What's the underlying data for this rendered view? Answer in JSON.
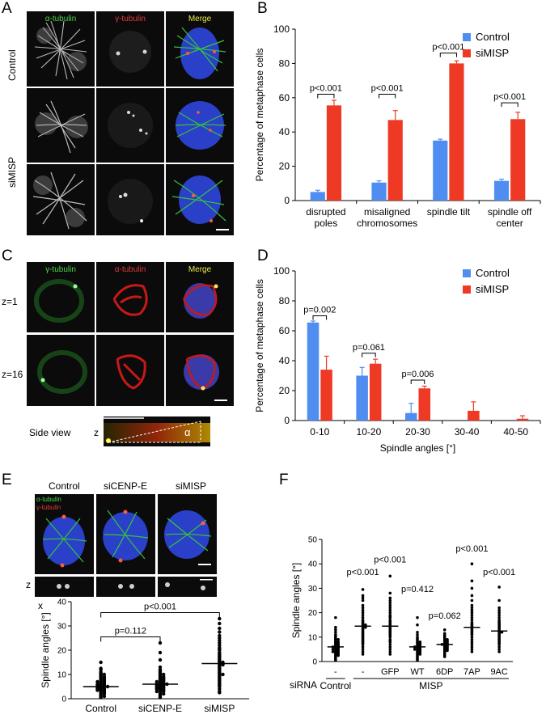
{
  "panels": {
    "A": "A",
    "B": "B",
    "C": "C",
    "D": "D",
    "E": "E",
    "F": "F"
  },
  "panelA": {
    "columns": [
      "α-tubulin",
      "γ-tubulin",
      "Merge"
    ],
    "column_colors": [
      "#4cd44c",
      "#e23a3a",
      "#e8e84a"
    ],
    "rows": {
      "control": "Control",
      "simisp": "siMISP"
    }
  },
  "panelC": {
    "columns": [
      "γ-tubulin",
      "α-tubulin",
      "Merge"
    ],
    "column_colors": [
      "#4cd44c",
      "#e23a3a",
      "#e8e84a"
    ],
    "rows": [
      "z=1",
      "z=16"
    ],
    "side_view": "Side view",
    "z_label": "z",
    "angle_symbol": "α"
  },
  "panelE": {
    "columns": [
      "Control",
      "siCENP-E",
      "siMISP"
    ],
    "inset_labels": [
      "α-tubulin",
      "γ-tubulin"
    ],
    "z_label": "z",
    "x_label": "x"
  },
  "chart_data": [
    {
      "id": "B",
      "type": "bar",
      "ylabel": "Percentage of metaphase cells",
      "ylim": [
        0,
        100
      ],
      "yticks": [
        0,
        20,
        40,
        60,
        80,
        100
      ],
      "categories": [
        [
          "disrupted",
          "poles"
        ],
        [
          "misaligned",
          "chromosomes"
        ],
        [
          "spindle tilt"
        ],
        [
          "spindle off",
          "center"
        ]
      ],
      "series": [
        {
          "name": "Control",
          "color": "#4f8ef0",
          "values": [
            5,
            10.5,
            35,
            11.5
          ],
          "errors": [
            1,
            1,
            0.8,
            1
          ]
        },
        {
          "name": "siMISP",
          "color": "#ee3a24",
          "values": [
            55.5,
            47,
            80,
            47.5
          ],
          "errors": [
            3,
            5.5,
            1.5,
            4
          ]
        }
      ],
      "annotations": [
        {
          "text": "p<0.001",
          "category": 0,
          "y": 62
        },
        {
          "text": "p<0.001",
          "category": 1,
          "y": 62
        },
        {
          "text": "p<0.001",
          "category": 2,
          "y": 86
        },
        {
          "text": "p<0.001",
          "category": 3,
          "y": 57
        }
      ],
      "legend": "top-right"
    },
    {
      "id": "D",
      "type": "bar",
      "xlabel": "Spindle angles [°]",
      "ylabel": "Percentage of metaphase cells",
      "ylim": [
        0,
        100
      ],
      "yticks": [
        0,
        20,
        40,
        60,
        80,
        100
      ],
      "categories": [
        [
          "0-10"
        ],
        [
          "10-20"
        ],
        [
          "20-30"
        ],
        [
          "30-40"
        ],
        [
          "40-50"
        ]
      ],
      "series": [
        {
          "name": "Control",
          "color": "#4f8ef0",
          "values": [
            65.5,
            30,
            5,
            0,
            0
          ],
          "errors": [
            1,
            5.5,
            6.5,
            0,
            0
          ]
        },
        {
          "name": "siMISP",
          "color": "#ee3a24",
          "values": [
            34,
            38,
            21.5,
            6.5,
            1.2
          ],
          "errors": [
            9,
            3,
            1.5,
            6,
            2
          ]
        }
      ],
      "annotations": [
        {
          "text": "p=0.002",
          "category": 0,
          "y": 70
        },
        {
          "text": "p=0.061",
          "category": 1,
          "y": 45
        },
        {
          "text": "p=0.006",
          "category": 2,
          "y": 27
        }
      ],
      "legend": "top-right"
    },
    {
      "id": "E",
      "type": "scatter",
      "ylabel": "Spindle angles [°]",
      "ylim": [
        0,
        40
      ],
      "yticks": [
        0,
        10,
        20,
        30,
        40
      ],
      "categories": [
        "Control",
        "siCENP-E",
        "siMISP"
      ],
      "groups": [
        {
          "name": "Control",
          "median": 5,
          "values": [
            15,
            12.5,
            12,
            11,
            10.5,
            10,
            10,
            9.5,
            9,
            9,
            8.5,
            8.5,
            8,
            8,
            7.5,
            7.5,
            7,
            7,
            7,
            6.5,
            6.5,
            6,
            6,
            6,
            5.5,
            5.5,
            5.5,
            5,
            5,
            5,
            5,
            4.5,
            4.5,
            4.5,
            4,
            4,
            4,
            3.5,
            3.5,
            3.5,
            3,
            3,
            2.5,
            2.5,
            2,
            2,
            1.5,
            1,
            1,
            0.5
          ]
        },
        {
          "name": "siCENP-E",
          "median": 6,
          "values": [
            23,
            19,
            16,
            13,
            12,
            11.5,
            11,
            10.5,
            10,
            10,
            9.5,
            9,
            9,
            8.5,
            8.5,
            8,
            8,
            7.5,
            7.5,
            7,
            7,
            7,
            6.5,
            6.5,
            6,
            6,
            6,
            6,
            5.5,
            5.5,
            5.5,
            5,
            5,
            5,
            4.5,
            4.5,
            4.5,
            4,
            4,
            4,
            3.5,
            3.5,
            3,
            3,
            3,
            2.5,
            2,
            2,
            1.5,
            1,
            0.5
          ]
        },
        {
          "name": "siMISP",
          "median": 14.5,
          "values": [
            33,
            31,
            29,
            27.5,
            26,
            25,
            24,
            23,
            22,
            21,
            20.5,
            20,
            19,
            18.5,
            18,
            17.5,
            17,
            16.5,
            16,
            15.5,
            15,
            15,
            14.5,
            14.5,
            14,
            14,
            13.5,
            13,
            12.5,
            12,
            11.5,
            11,
            10.5,
            10,
            10,
            9.5,
            9,
            8.5,
            8,
            7.5,
            7,
            6.5,
            6,
            5.5,
            5,
            4,
            3,
            2.5
          ]
        }
      ],
      "annotations": [
        {
          "text": "p=0.112",
          "from": 0,
          "to": 1,
          "y": 25.5
        },
        {
          "text": "p<0.001",
          "from": 0,
          "to": 2,
          "y": 35.5
        }
      ]
    },
    {
      "id": "F",
      "type": "scatter",
      "ylabel": "Spindle angles [°]",
      "ylim": [
        0,
        50
      ],
      "yticks": [
        0,
        10,
        20,
        30,
        40,
        50
      ],
      "categories": [
        "-",
        "-",
        "GFP",
        "WT",
        "6DP",
        "7AP",
        "9AC"
      ],
      "row_label": "siRNA",
      "group_labels": [
        {
          "text": "Control",
          "from": 0,
          "to": 0
        },
        {
          "text": "MISP",
          "from": 1,
          "to": 6
        }
      ],
      "groups": [
        {
          "name": "-",
          "median": 6,
          "values": [
            18,
            14,
            13,
            12,
            11,
            10.5,
            10,
            9.5,
            9,
            9,
            8.5,
            8,
            8,
            7.5,
            7.5,
            7,
            7,
            6.5,
            6.5,
            6,
            6,
            6,
            5.5,
            5.5,
            5,
            5,
            5,
            4.5,
            4.5,
            4,
            4,
            4,
            3.5,
            3.5,
            3,
            3,
            2.5,
            2.5,
            2,
            1.5,
            1,
            0.5
          ]
        },
        {
          "name": "-",
          "median": 14.5,
          "values": [
            29.5,
            27,
            26,
            25,
            23,
            22,
            21,
            20,
            19,
            18,
            17,
            16.5,
            16,
            15.5,
            15,
            15,
            14.5,
            14,
            14,
            13.5,
            13,
            12.5,
            12,
            11.5,
            11,
            10.5,
            10,
            9.5,
            9,
            8.5,
            8,
            7.5,
            7,
            6,
            5,
            4,
            3
          ]
        },
        {
          "name": "GFP",
          "median": 14.5,
          "values": [
            35,
            28,
            26,
            25,
            24,
            23,
            22,
            21,
            20,
            19,
            18.5,
            18,
            17,
            16.5,
            16,
            15.5,
            15,
            14.5,
            14,
            13.5,
            13,
            12.5,
            12,
            11.5,
            11,
            10.5,
            10,
            9,
            8.5,
            8,
            7,
            6,
            5,
            4,
            3
          ]
        },
        {
          "name": "WT",
          "median": 6,
          "values": [
            18,
            15,
            12,
            11,
            10,
            9.5,
            9,
            8.5,
            8,
            8,
            7.5,
            7.5,
            7,
            7,
            6.5,
            6.5,
            6,
            6,
            6,
            5.5,
            5.5,
            5,
            5,
            5,
            4.5,
            4.5,
            4,
            4,
            3.5,
            3.5,
            3,
            3,
            2.5,
            2,
            1.5,
            1,
            0.5
          ]
        },
        {
          "name": "6DP",
          "median": 7,
          "values": [
            13,
            11.5,
            11,
            10.5,
            10,
            9.5,
            9,
            9,
            8.5,
            8.5,
            8,
            8,
            7.5,
            7.5,
            7,
            7,
            7,
            6.5,
            6.5,
            6,
            6,
            5.5,
            5.5,
            5,
            5,
            4.5,
            4.5,
            4,
            3.5,
            3,
            2.5,
            2
          ]
        },
        {
          "name": "7AP",
          "median": 14,
          "values": [
            40,
            33,
            30,
            27,
            25,
            23,
            22,
            21,
            20,
            19,
            18,
            17,
            16,
            15.5,
            15,
            14.5,
            14,
            13.5,
            13,
            12.5,
            12,
            11.5,
            11,
            10,
            9,
            8,
            7,
            6,
            5,
            4
          ]
        },
        {
          "name": "9AC",
          "median": 12.5,
          "values": [
            30.5,
            25,
            22,
            21,
            20,
            19,
            18,
            17,
            16.5,
            16,
            15.5,
            15,
            14.5,
            14,
            13.5,
            13,
            12.5,
            12,
            12,
            11.5,
            11,
            10.5,
            10,
            9.5,
            9,
            8.5,
            8,
            7.5,
            7,
            6,
            5,
            4
          ]
        }
      ],
      "annotations": [
        {
          "text": "p<0.001",
          "group": 1,
          "y": 35.5
        },
        {
          "text": "p<0.001",
          "group": 2,
          "y": 40.5
        },
        {
          "text": "p=0.412",
          "group": 3,
          "y": 28.5
        },
        {
          "text": "p=0.062",
          "group": 4,
          "y": 17.5
        },
        {
          "text": "p<0.001",
          "group": 5,
          "y": 45
        },
        {
          "text": "p<0.001",
          "group": 6,
          "y": 35.5
        }
      ]
    }
  ]
}
